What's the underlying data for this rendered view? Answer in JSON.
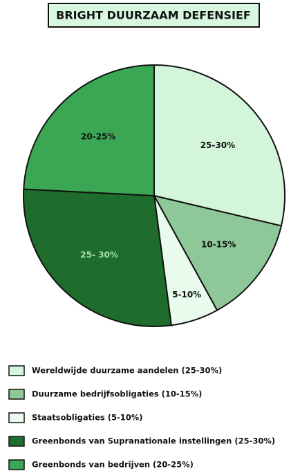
{
  "chart_data": {
    "type": "pie",
    "title": "BRIGHT DUURZAAM DEFENSIEF",
    "categories": [
      "Wereldwijde duurzame aandelen (25-30%)",
      "Duurzame bedrijfsobligaties (10-15%)",
      "Staatsobligaties  (5-10%)",
      "Greenbonds van Supranationale instellingen (25-30%)",
      "Greenbonds van bedrijven (20-25%)"
    ],
    "values": [
      28.7,
      13.3,
      5.9,
      27.9,
      24.2
    ],
    "value_labels": [
      "25-30%",
      "10-15%",
      "5-10%",
      "25- 30%",
      "20-25%"
    ],
    "colors": [
      "#d3f5da",
      "#8ec899",
      "#e9fbec",
      "#1f6d2d",
      "#3ba653"
    ]
  }
}
